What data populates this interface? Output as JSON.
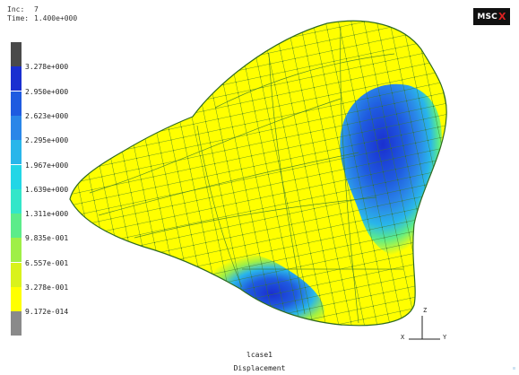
{
  "header": {
    "inc_label": "Inc:",
    "inc_value": "7",
    "time_label": "Time:",
    "time_value": "1.400e+000"
  },
  "logo": {
    "text": "MSC",
    "mark": "X"
  },
  "legend": {
    "colors": [
      "#4a4a4a",
      "#1a2fd0",
      "#1f5be0",
      "#2a86e8",
      "#29b6ea",
      "#22d6e6",
      "#33e6c9",
      "#5cec8a",
      "#9fef47",
      "#d9f21c",
      "#ffff00",
      "#8a8a8a"
    ],
    "labels": [
      "3.278e+000",
      "2.950e+000",
      "2.623e+000",
      "2.295e+000",
      "1.967e+000",
      "1.639e+000",
      "1.311e+000",
      "9.835e-001",
      "6.557e-001",
      "3.278e-001",
      "9.172e-014"
    ]
  },
  "footer": {
    "case": "lcase1",
    "quantity": "Displacement"
  },
  "axes": {
    "z": "Z",
    "x": "X",
    "y": "Y"
  }
}
